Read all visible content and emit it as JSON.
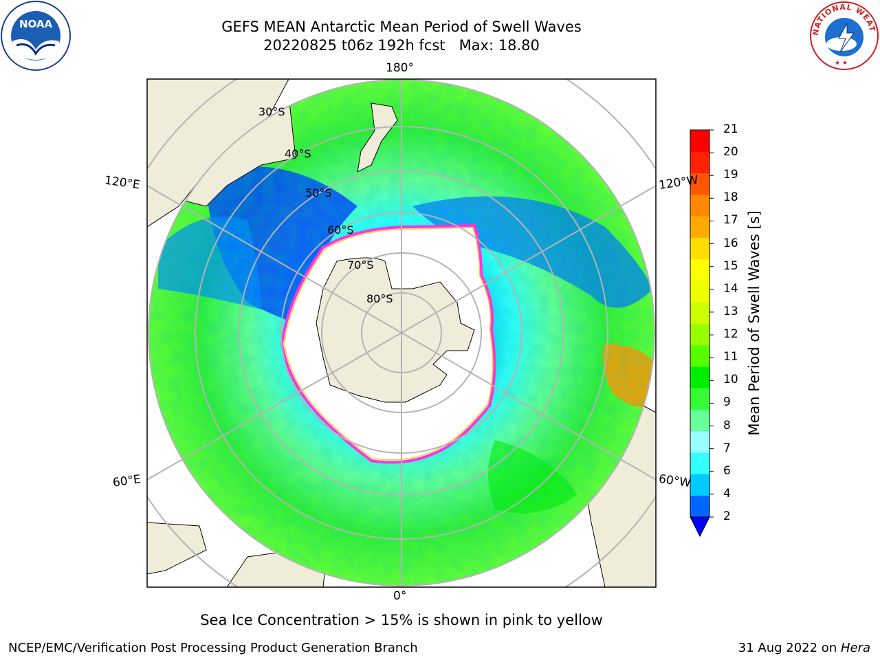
{
  "header": {
    "title_line1": "GEFS MEAN Antarctic Mean Period of Swell Waves",
    "title_line2": "20220825 t06z 192h fcst   Max: 18.80"
  },
  "logos": {
    "left": {
      "icon": "noaa-logo",
      "text": "NOAA"
    },
    "right": {
      "icon": "nws-logo",
      "text": "NATIONAL WEATHER SERVICE"
    }
  },
  "map": {
    "projection": "south-polar-stereographic",
    "longitude_labels": {
      "top": "180°",
      "bottom": "0°",
      "upper_left": "120°E",
      "upper_right": "120°W",
      "lower_left": "60°E",
      "lower_right": "60°W"
    },
    "latitude_labels": [
      "30°S",
      "40°S",
      "50°S",
      "60°S",
      "70°S",
      "80°S"
    ],
    "colors": {
      "land": "#efedda",
      "ice_edge_pink": "#ff33dd",
      "ice_edge_yellow": "#ffcc33",
      "grid": "#b4b4b4"
    }
  },
  "colorbar": {
    "label": "Mean Period of Swell Waves [s]",
    "ticks": [
      "2",
      "4",
      "6",
      "7",
      "8",
      "9",
      "10",
      "11",
      "12",
      "13",
      "14",
      "15",
      "16",
      "17",
      "18",
      "19",
      "20",
      "21"
    ],
    "colors": [
      "#0066ff",
      "#00ccff",
      "#33ffff",
      "#99ffff",
      "#66ff99",
      "#33ff33",
      "#00ee00",
      "#55ff00",
      "#99ff00",
      "#ccff00",
      "#eeff00",
      "#ffff00",
      "#ffdd00",
      "#ffaa00",
      "#ff8800",
      "#ff5500",
      "#ff2200",
      "#ff0000"
    ],
    "under_color": "#0000ff"
  },
  "caption": "Sea Ice Concentration > 15% is shown in pink to yellow",
  "footer": {
    "left": "NCEP/EMC/Verification Post Processing Product Generation Branch",
    "right_date": "31 Aug 2022 on ",
    "right_host": "Hera"
  }
}
